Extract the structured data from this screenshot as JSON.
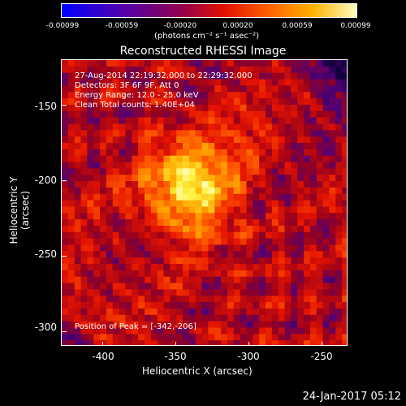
{
  "colorbar": {
    "ticks": [
      "-0.00099",
      "-0.00059",
      "-0.00020",
      "0.00020",
      "0.00059",
      "0.00099"
    ],
    "unit": "(photons cm⁻² s⁻¹ asec⁻²)",
    "colors": [
      "#0000ff",
      "#7000a0",
      "#a00040",
      "#ff2000",
      "#ff8000",
      "#ffff40",
      "#ffffff"
    ]
  },
  "annotations": {
    "line1": "27-Aug-2014 22:19:32.000 to 22:29:32.000",
    "line2": "Detectors: 3F 6F 9F, Att 0",
    "line3": "Energy Range: 12.0 - 25.0 keV",
    "line4": "Clean     Total counts: 1.40E+04",
    "peak": "Position of Peak = [-342,-206]"
  },
  "timestamp": "24-Jan-2017 05:12",
  "chart_data": {
    "type": "heatmap",
    "title": "Reconstructed RHESSI Image",
    "xlabel": "Heliocentric X (arcsec)",
    "ylabel": "Heliocentric Y (arcsec)",
    "xlim": [
      -428,
      -232
    ],
    "ylim": [
      -310,
      -120
    ],
    "x_ticks": [
      "-400",
      "-350",
      "-300",
      "-250"
    ],
    "x_tick_values": [
      -400,
      -350,
      -300,
      -250
    ],
    "y_ticks": [
      "-150",
      "-200",
      "-250",
      "-300"
    ],
    "y_tick_values": [
      -150,
      -200,
      -250,
      -300
    ],
    "peak": [
      -342,
      -206
    ],
    "colorbar_range": [
      -0.00099,
      0.00099
    ]
  }
}
